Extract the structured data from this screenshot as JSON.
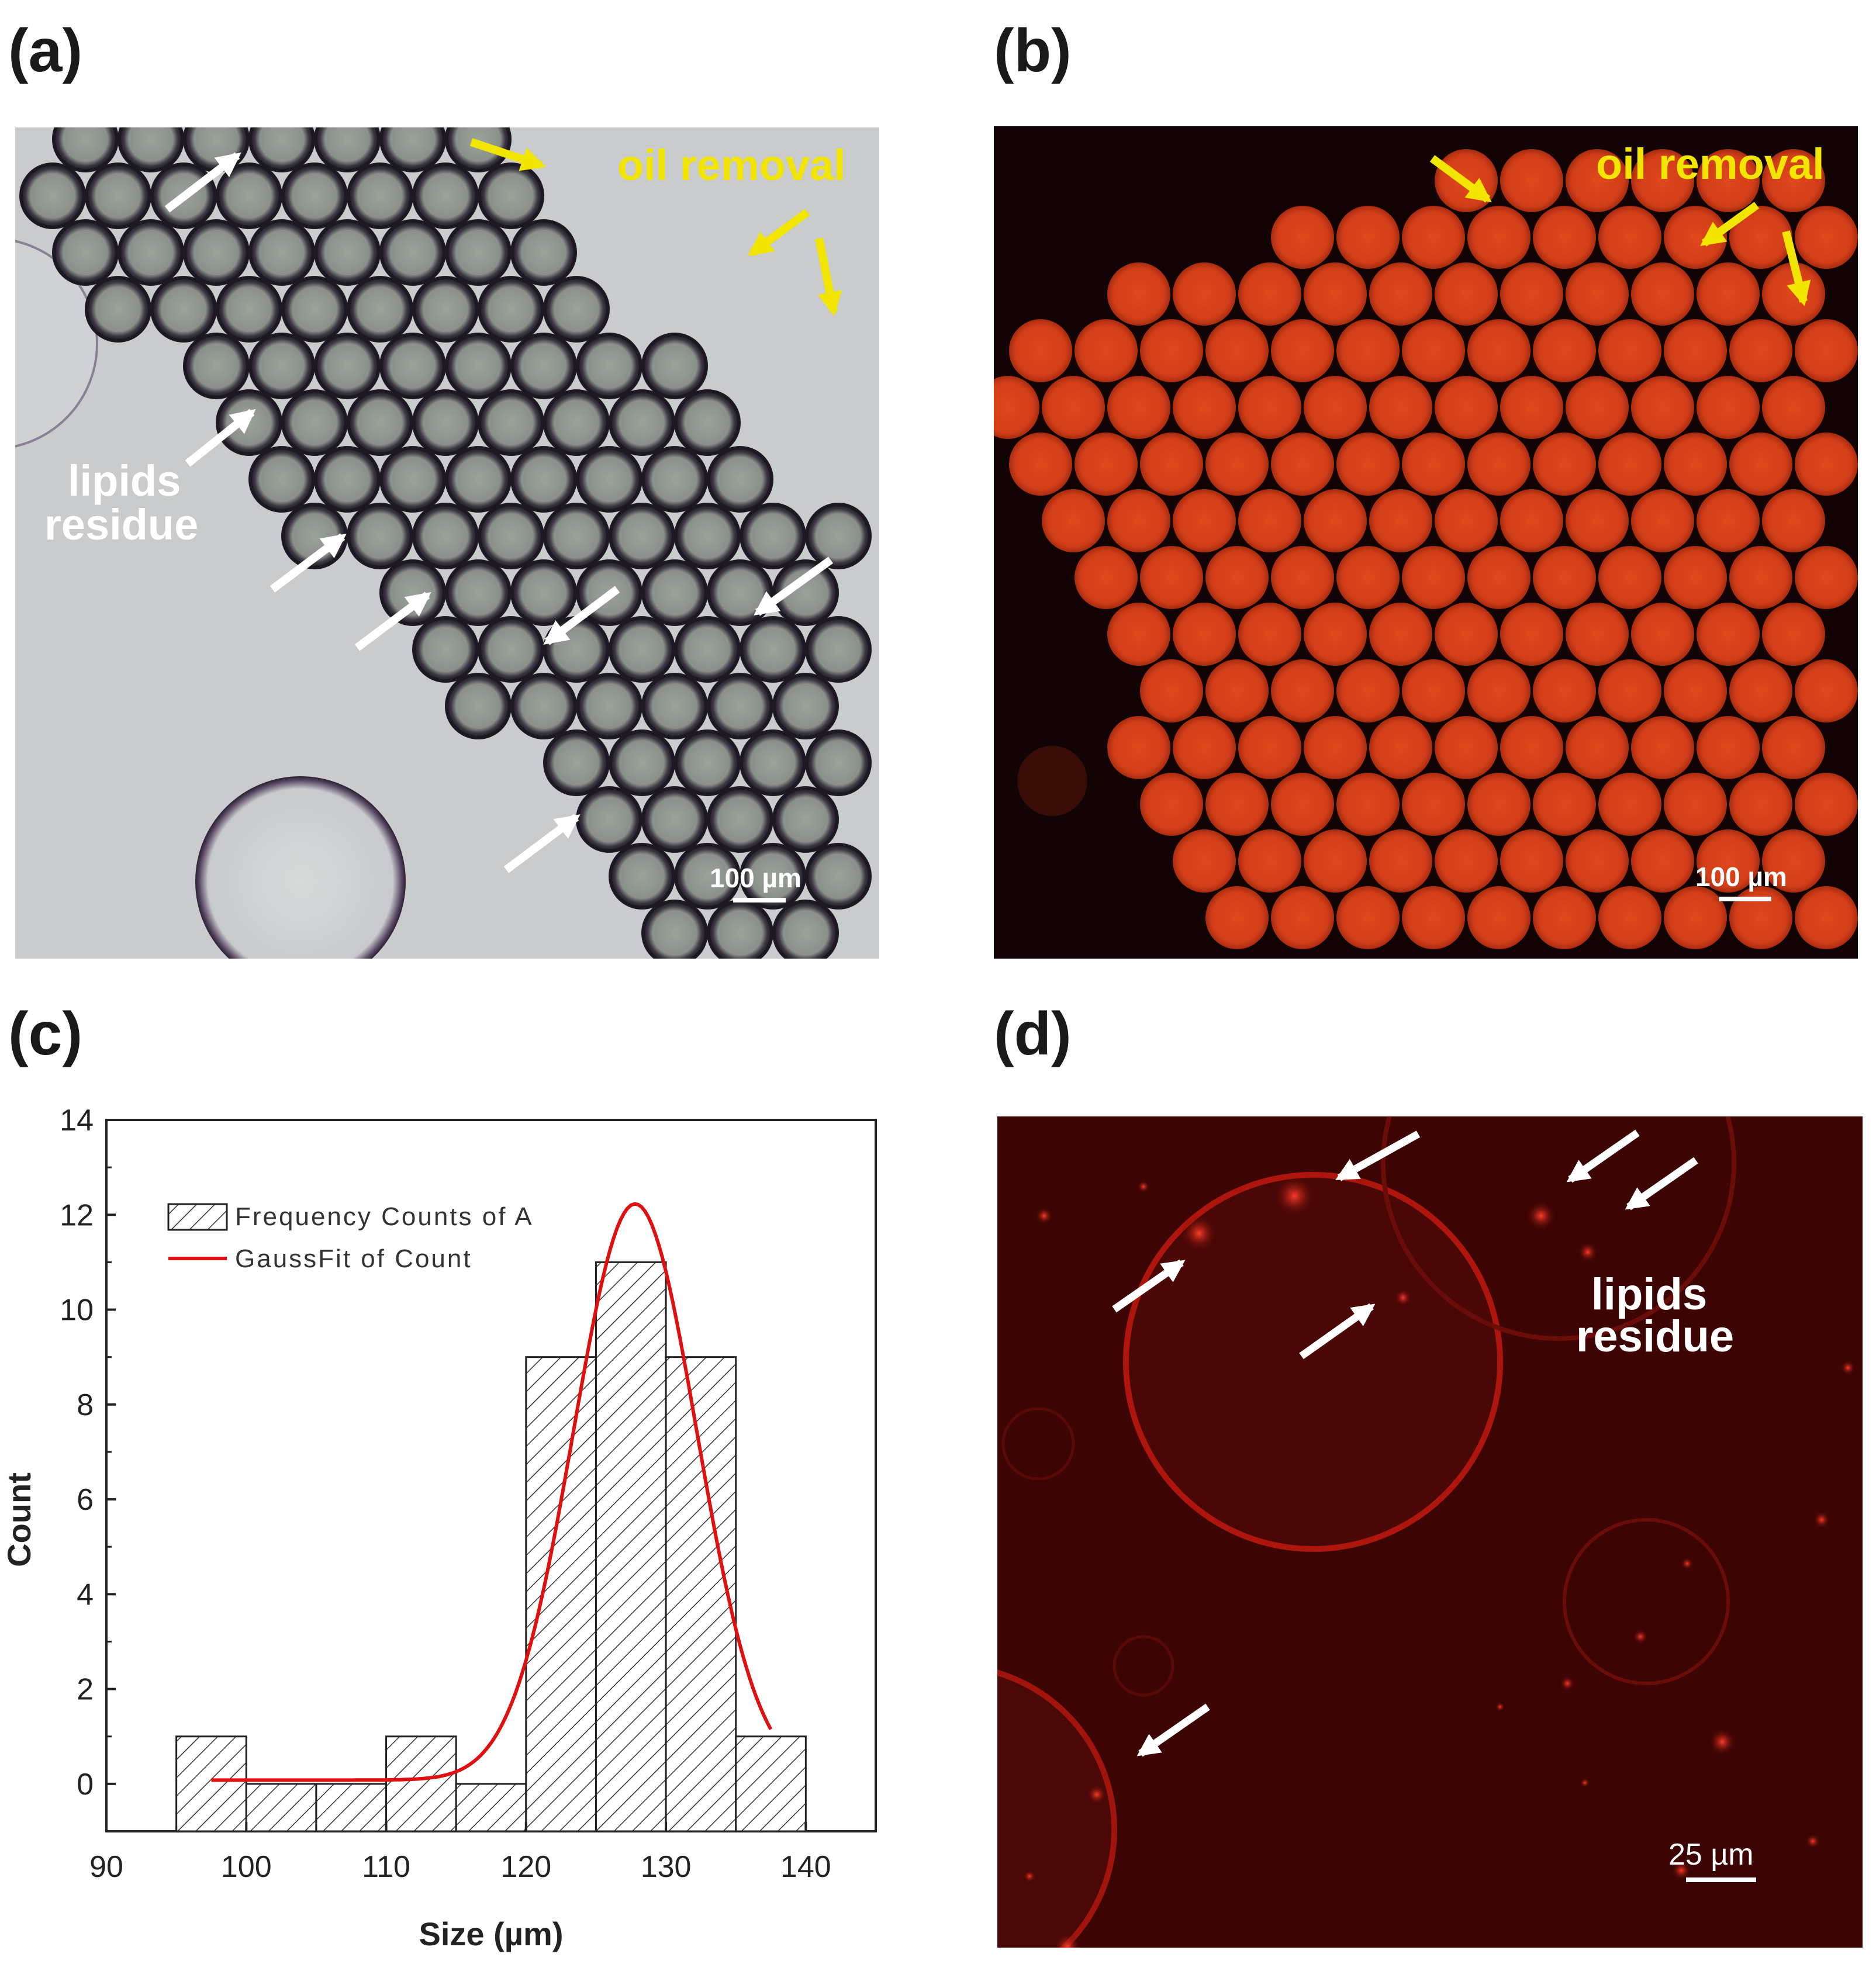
{
  "panels": {
    "a": {
      "label": "(a)",
      "annotations": {
        "oil": "oil removal",
        "lipids_line1": "lipids",
        "lipids_line2": "residue"
      },
      "scale": "100 µm"
    },
    "b": {
      "label": "(b)",
      "annotations": {
        "oil": "oil removal"
      },
      "scale": "100 µm"
    },
    "c": {
      "label": "(c)"
    },
    "d": {
      "label": "(d)",
      "annotations": {
        "lipids_line1": "lipids",
        "lipids_line2": "residue"
      },
      "scale": "25 µm"
    }
  },
  "colors": {
    "annotation_yellow": "#f2e600",
    "fit_red": "#e01010",
    "fluor_orange": "#d9401a",
    "fluor_dark": "#120404"
  },
  "chart_data": {
    "type": "bar",
    "xlabel": "Size (µm)",
    "ylabel": "Count",
    "xlim": [
      90,
      145
    ],
    "ylim": [
      -1,
      14
    ],
    "xticks": [
      90,
      100,
      110,
      120,
      130,
      140
    ],
    "yticks": [
      0,
      2,
      4,
      6,
      8,
      10,
      12,
      14
    ],
    "bin_width": 5,
    "bins": [
      {
        "center": 97.5,
        "value": 1
      },
      {
        "center": 102.5,
        "value": 0
      },
      {
        "center": 107.5,
        "value": 0
      },
      {
        "center": 112.5,
        "value": 1
      },
      {
        "center": 117.5,
        "value": 0
      },
      {
        "center": 122.5,
        "value": 9
      },
      {
        "center": 127.5,
        "value": 11
      },
      {
        "center": 132.5,
        "value": 9
      },
      {
        "center": 137.5,
        "value": 1
      }
    ],
    "fit": {
      "type": "gauss",
      "y0": 0.08,
      "xc": 127.8,
      "w": 8.8,
      "A": 12.15,
      "xrange": [
        97.5,
        137.5
      ]
    },
    "legend": {
      "position": "top-left",
      "entries": [
        "Frequency Counts of A",
        "GaussFit of Count"
      ]
    }
  }
}
